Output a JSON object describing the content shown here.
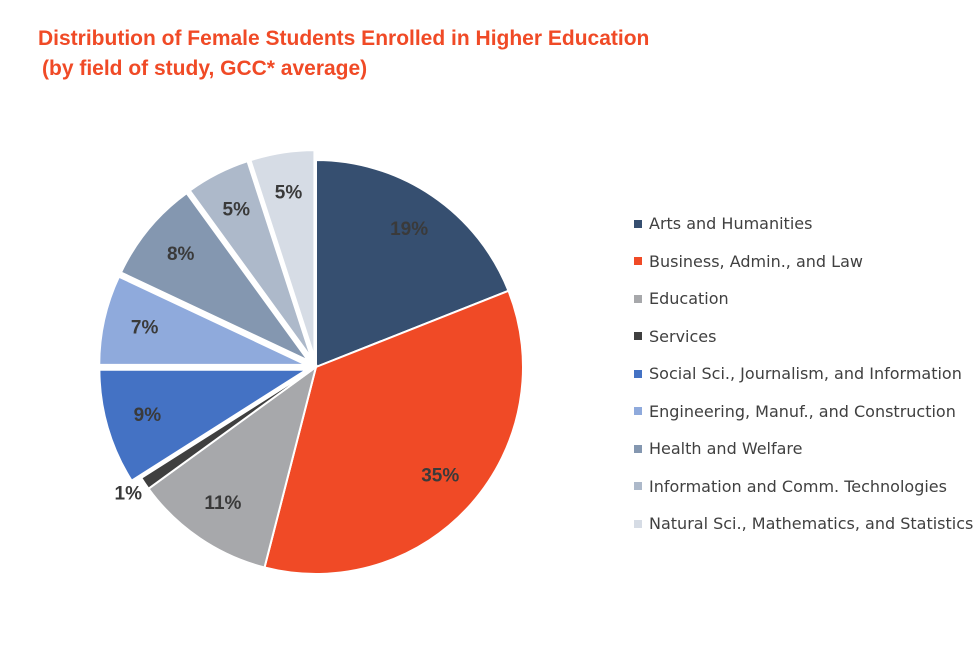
{
  "chart_data": {
    "type": "pie",
    "title": "Distribution of Female Students Enrolled in Higher Education",
    "subtitle": "(by field of study, GCC* average)",
    "legend_position": "right",
    "slices": [
      {
        "name": "Arts and Humanities",
        "value": 19,
        "label": "19%",
        "color": "#364f70"
      },
      {
        "name": "Business, Admin., and Law",
        "value": 35,
        "label": "35%",
        "color": "#f04a26"
      },
      {
        "name": "Education",
        "value": 11,
        "label": "11%",
        "color": "#a7a8ab"
      },
      {
        "name": "Services",
        "value": 1,
        "label": "1%",
        "color": "#3f3f3f"
      },
      {
        "name": "Social Sci., Journalism, and Information",
        "value": 9,
        "label": "9%",
        "color": "#4472c4"
      },
      {
        "name": "Engineering, Manuf., and Construction",
        "value": 7,
        "label": "7%",
        "color": "#8faadc"
      },
      {
        "name": "Health and Welfare",
        "value": 8,
        "label": "8%",
        "color": "#8497b0"
      },
      {
        "name": "Information and Comm. Technologies",
        "value": 5,
        "label": "5%",
        "color": "#adb9ca"
      },
      {
        "name": "Natural Sci., Mathematics, and Statistics",
        "value": 5,
        "label": "5%",
        "color": "#d6dce5"
      }
    ]
  }
}
